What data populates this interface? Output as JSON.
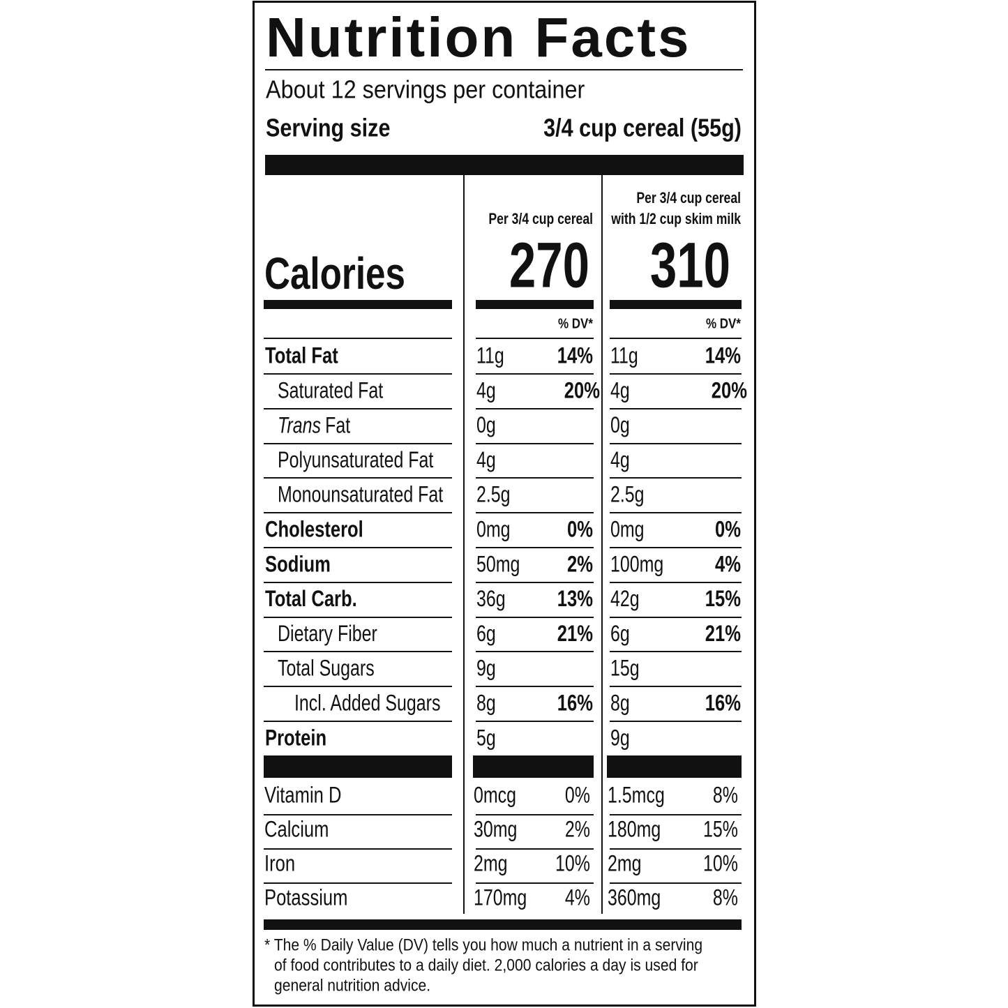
{
  "header": {
    "title": "Nutrition Facts",
    "servings": "About 12 servings per container",
    "serving_size_label": "Serving size",
    "serving_size": "3/4 cup cereal (55g)"
  },
  "columns": [
    [
      "Per 3/4 cup cereal"
    ],
    [
      "Per 3/4 cup cereal",
      "with 1/2 cup skim milk"
    ]
  ],
  "calories": {
    "label": "Calories",
    "values": [
      "270",
      "310"
    ]
  },
  "dv_header": "% DV*",
  "nutrients": [
    {
      "name": "Total Fat",
      "amounts": [
        "11g",
        "11g"
      ],
      "dv": [
        "14%",
        "14%"
      ]
    },
    {
      "name": "Saturated Fat",
      "amounts": [
        "4g",
        "4g"
      ],
      "dv": [
        "20%",
        "20%"
      ]
    },
    {
      "name": {
        "italic": "Trans",
        "text": "Fat"
      },
      "amounts": [
        "0g",
        "0g"
      ],
      "dv": [
        null,
        null
      ]
    },
    {
      "name": "Polyunsaturated Fat",
      "amounts": [
        "4g",
        "4g"
      ],
      "dv": [
        null,
        null
      ]
    },
    {
      "name": "Monounsaturated Fat",
      "amounts": [
        "2.5g",
        "2.5g"
      ],
      "dv": [
        null,
        null
      ]
    },
    {
      "name": "Cholesterol",
      "amounts": [
        "0mg",
        "0mg"
      ],
      "dv": [
        "0%",
        "0%"
      ]
    },
    {
      "name": "Sodium",
      "amounts": [
        "50mg",
        "100mg"
      ],
      "dv": [
        "2%",
        "4%"
      ]
    },
    {
      "name": "Total Carb.",
      "amounts": [
        "36g",
        "42g"
      ],
      "dv": [
        "13%",
        "15%"
      ]
    },
    {
      "name": "Dietary Fiber",
      "amounts": [
        "6g",
        "6g"
      ],
      "dv": [
        "21%",
        "21%"
      ]
    },
    {
      "name": "Total Sugars",
      "amounts": [
        "9g",
        "15g"
      ],
      "dv": [
        null,
        null
      ]
    },
    {
      "name": "Incl. Added Sugars",
      "amounts": [
        "8g",
        "8g"
      ],
      "dv": [
        "16%",
        "16%"
      ]
    },
    {
      "name": "Protein",
      "amounts": [
        "5g",
        "9g"
      ],
      "dv": [
        null,
        null
      ]
    }
  ],
  "vitamins": [
    {
      "name": "Vitamin D",
      "amounts": [
        "0mcg",
        "1.5mcg"
      ],
      "dv": [
        "0%",
        "8%"
      ]
    },
    {
      "name": "Calcium",
      "amounts": [
        "30mg",
        "180mg"
      ],
      "dv": [
        "2%",
        "15%"
      ]
    },
    {
      "name": "Iron",
      "amounts": [
        "2mg",
        "2mg"
      ],
      "dv": [
        "10%",
        "10%"
      ]
    },
    {
      "name": "Potassium",
      "amounts": [
        "170mg",
        "360mg"
      ],
      "dv": [
        "4%",
        "8%"
      ]
    }
  ],
  "footnote": [
    "* The % Daily Value (DV) tells you how much a nutrient in a serving",
    "of food contributes to a daily diet. 2,000 calories a day is used for",
    "general nutrition advice."
  ]
}
